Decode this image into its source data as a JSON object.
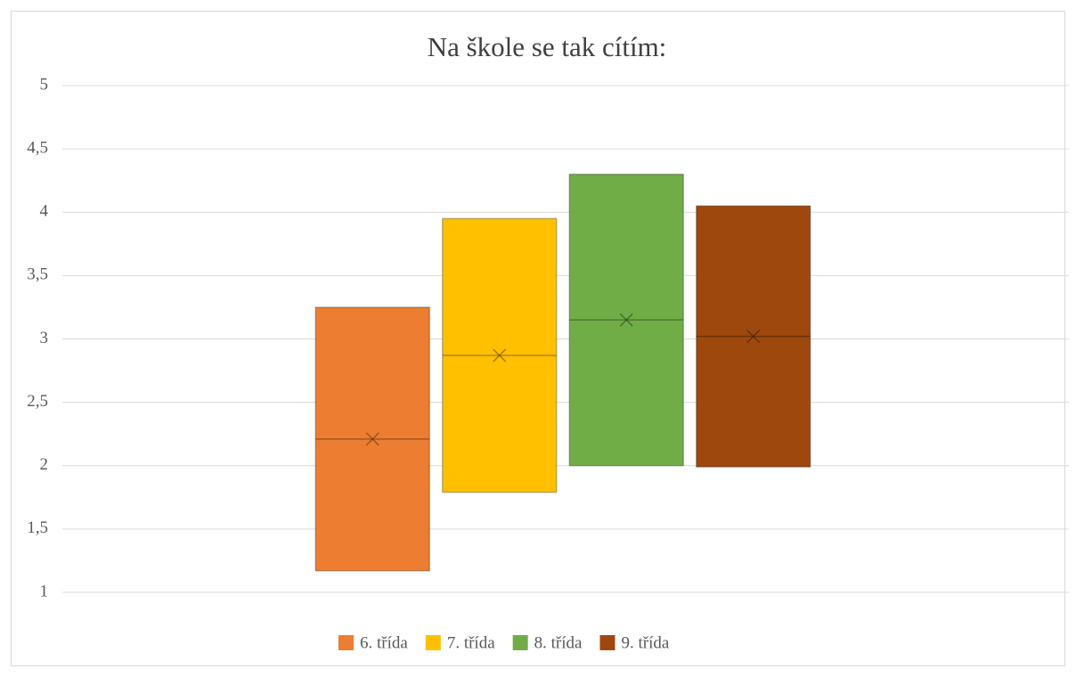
{
  "chart_data": {
    "type": "box",
    "title": "Na škole se tak cítím:",
    "series": [
      {
        "name": "6. třída",
        "color": "#ed7d31",
        "q1": 1.17,
        "q3": 3.25,
        "median": 2.21,
        "mean": 2.21
      },
      {
        "name": "7. třída",
        "color": "#ffc000",
        "q1": 1.79,
        "q3": 3.95,
        "median": 2.87,
        "mean": 2.87
      },
      {
        "name": "8. třída",
        "color": "#70ad47",
        "q1": 2.0,
        "q3": 4.3,
        "median": 3.15,
        "mean": 3.15
      },
      {
        "name": "9. třída",
        "color": "#9e480e",
        "q1": 1.99,
        "q3": 4.05,
        "median": 3.02,
        "mean": 3.02
      }
    ],
    "ylim": [
      1,
      5
    ],
    "yticks": [
      1,
      {
        "value": 1.5,
        "label": "1,5"
      },
      2,
      {
        "value": 2.5,
        "label": "2,5"
      },
      3,
      {
        "value": 3.5,
        "label": "3,5"
      },
      4,
      {
        "value": 4.5,
        "label": "4,5"
      },
      5
    ],
    "grid": true,
    "legend": "bottom"
  }
}
